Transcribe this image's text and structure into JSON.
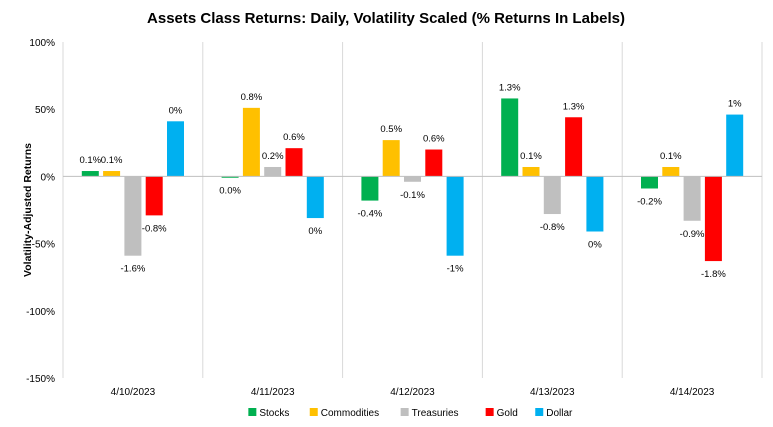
{
  "chart_data": {
    "type": "bar",
    "title": "Assets Class Returns: Daily, Volatility Scaled (% Returns In Labels)",
    "xlabel": "",
    "ylabel": "Volatility-Adjusted Returns",
    "ylim": [
      -150,
      100
    ],
    "yticks": [
      100,
      50,
      0,
      -50,
      -100,
      -150
    ],
    "ytick_labels": [
      "100%",
      "50%",
      "0%",
      "-50%",
      "-100%",
      "-150%"
    ],
    "categories": [
      "4/10/2023",
      "4/11/2023",
      "4/12/2023",
      "4/13/2023",
      "4/14/2023"
    ],
    "grid": "vertical category separators",
    "legend_position": "bottom",
    "series": [
      {
        "name": "Stocks",
        "color": "#00b050",
        "values": [
          4,
          -1,
          -18,
          58,
          -9
        ],
        "labels": [
          "0.1%",
          "0.0%",
          "-0.4%",
          "1.3%",
          "-0.2%"
        ]
      },
      {
        "name": "Commodities",
        "color": "#ffc000",
        "values": [
          4,
          51,
          27,
          7,
          7
        ],
        "labels": [
          "0.1%",
          "0.8%",
          "0.5%",
          "0.1%",
          "0.1%"
        ]
      },
      {
        "name": "Treasuries",
        "color": "#bfbfbf",
        "values": [
          -59,
          7,
          -4,
          -28,
          -33
        ],
        "labels": [
          "-1.6%",
          "0.2%",
          "-0.1%",
          "-0.8%",
          "-0.9%"
        ]
      },
      {
        "name": "Gold",
        "color": "#ff0000",
        "values": [
          -29,
          21,
          20,
          44,
          -63
        ],
        "labels": [
          "-0.8%",
          "0.6%",
          "0.6%",
          "1.3%",
          "-1.8%"
        ]
      },
      {
        "name": "Dollar",
        "color": "#00b0f0",
        "values": [
          41,
          -31,
          -59,
          -41,
          46
        ],
        "labels": [
          "0%",
          "0%",
          "-1%",
          "0%",
          "1%"
        ]
      }
    ]
  }
}
